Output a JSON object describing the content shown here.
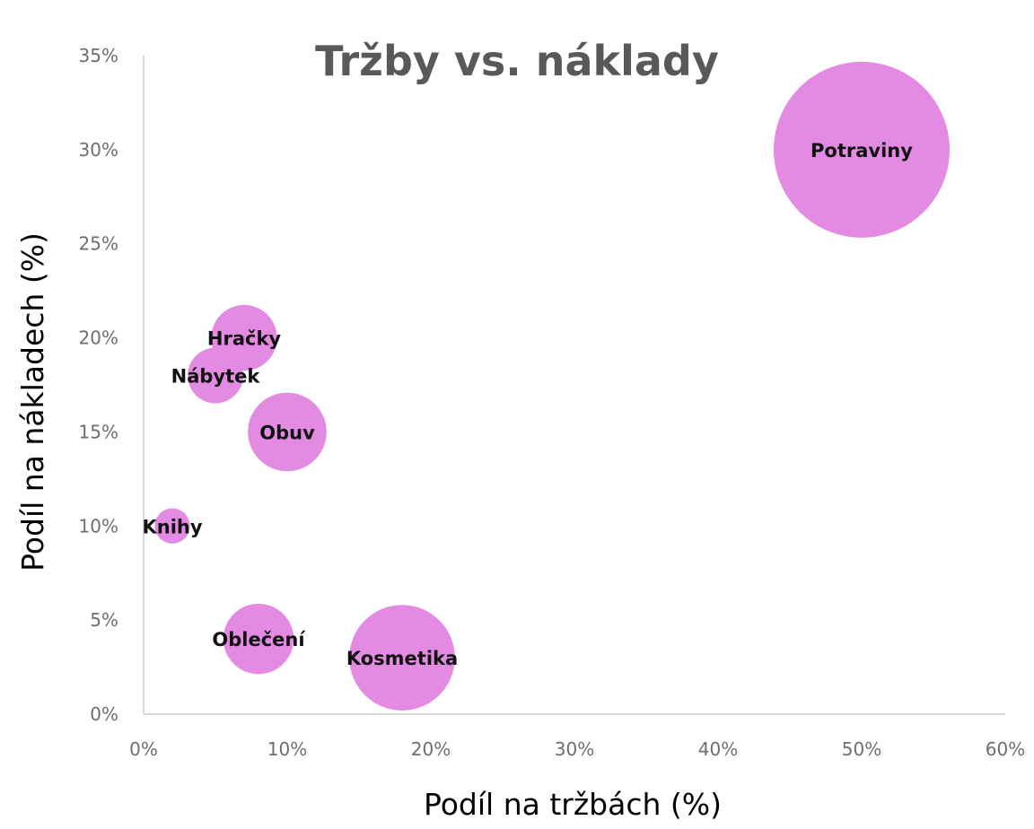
{
  "chart_data": {
    "type": "bubble",
    "title": "Tržby vs. náklady",
    "xlabel": "Podíl na tržbách (%)",
    "ylabel": "Podíl na nákladech (%)",
    "xlim": [
      0,
      60
    ],
    "ylim": [
      0,
      35
    ],
    "x_ticks": [
      0,
      10,
      20,
      30,
      40,
      50,
      60
    ],
    "y_ticks": [
      0,
      5,
      10,
      15,
      20,
      25,
      30,
      35
    ],
    "x_tick_labels": [
      "0%",
      "10%",
      "20%",
      "30%",
      "40%",
      "50%",
      "60%"
    ],
    "y_tick_labels": [
      "0%",
      "5%",
      "10%",
      "15%",
      "20%",
      "25%",
      "30%",
      "35%"
    ],
    "grid": false,
    "bubble_color": "#e38be3",
    "points": [
      {
        "label": "Potraviny",
        "x": 50,
        "y": 30,
        "size": 50
      },
      {
        "label": "Hračky",
        "x": 7,
        "y": 20,
        "size": 7
      },
      {
        "label": "Nábytek",
        "x": 5,
        "y": 18,
        "size": 5
      },
      {
        "label": "Obuv",
        "x": 10,
        "y": 15,
        "size": 10
      },
      {
        "label": "Knihy",
        "x": 2,
        "y": 10,
        "size": 2
      },
      {
        "label": "Oblečení",
        "x": 8,
        "y": 4,
        "size": 8
      },
      {
        "label": "Kosmetika",
        "x": 18,
        "y": 3,
        "size": 18
      }
    ]
  }
}
